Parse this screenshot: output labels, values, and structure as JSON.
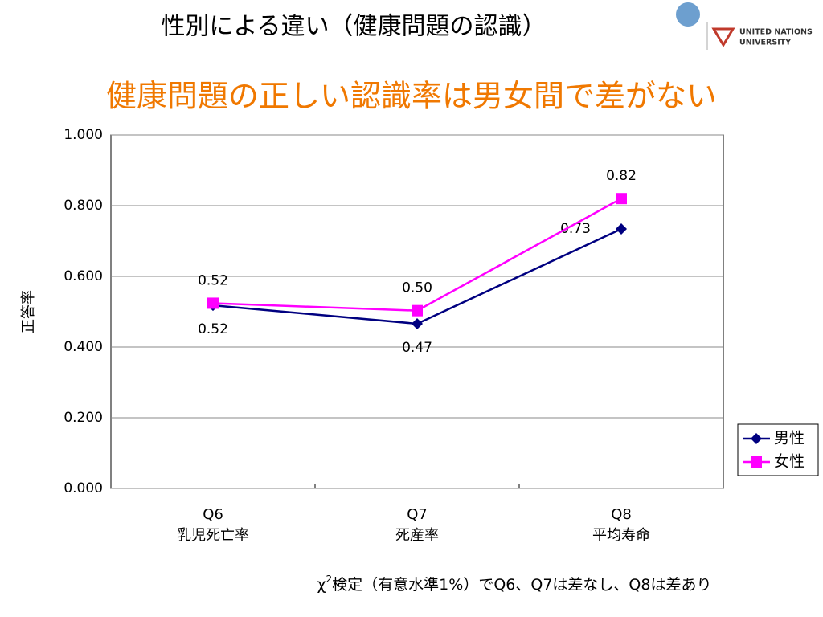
{
  "header": {
    "title": "性別による違い（健康問題の認識）",
    "logo": [
      "UNITED NATIONS",
      "UNIVERSITY"
    ]
  },
  "chart_data": {
    "type": "line",
    "title": "健康問題の正しい認識率は男女間で差がない",
    "y_label": "正答率",
    "categories": [
      "Q6",
      "Q7",
      "Q8"
    ],
    "category_names": [
      "乳児死亡率",
      "死産率",
      "平均寿命"
    ],
    "series": [
      {
        "name": "男性",
        "color": "#000080",
        "marker": "diamond",
        "values": [
          0.518,
          0.466,
          0.734
        ],
        "value_labels": [
          "0.52",
          "0.47",
          "0.73"
        ]
      },
      {
        "name": "女性",
        "color": "#ff00ff",
        "marker": "square",
        "values": [
          0.524,
          0.503,
          0.82
        ],
        "value_labels": [
          "0.52",
          "0.50",
          "0.82"
        ]
      }
    ],
    "ylim": [
      0,
      1
    ],
    "yticks": [
      {
        "value": 0,
        "label": "0.000"
      },
      {
        "value": 0.2,
        "label": "0.200"
      },
      {
        "value": 0.4,
        "label": "0.400"
      },
      {
        "value": 0.6,
        "label": "0.600"
      },
      {
        "value": 0.8,
        "label": "0.800"
      },
      {
        "value": 1,
        "label": "1.000"
      }
    ],
    "grid": true,
    "legend": "right",
    "note": [
      "χ",
      "2",
      "検定（有意水準1%）でQ6、Q7は差なし、Q8は差あり"
    ]
  }
}
